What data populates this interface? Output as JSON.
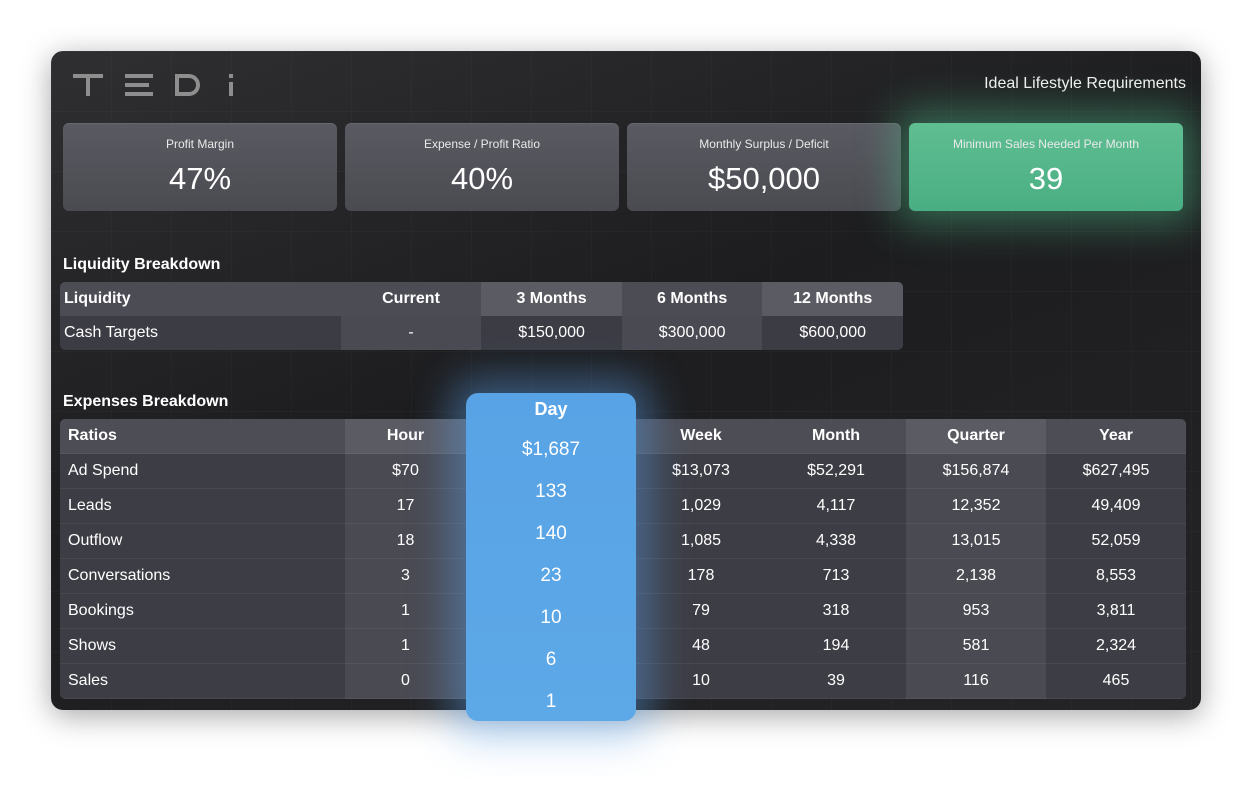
{
  "brand": "TEDi",
  "page_title": "Ideal Lifestyle Requirements",
  "kpis": [
    {
      "label": "Profit Margin",
      "value": "47%"
    },
    {
      "label": "Expense / Profit Ratio",
      "value": "40%"
    },
    {
      "label": "Monthly Surplus / Deficit",
      "value": "$50,000"
    },
    {
      "label": "Minimum Sales Needed Per Month",
      "value": "39"
    }
  ],
  "colors": {
    "highlight_green": "#4fb587",
    "highlight_blue": "#5aa5e6",
    "panel_bg": "#232325"
  },
  "liquidity": {
    "title": "Liquidity Breakdown",
    "headers": [
      "Liquidity",
      "Current",
      "3 Months",
      "6 Months",
      "12 Months"
    ],
    "row": [
      "Cash Targets",
      "-",
      "$150,000",
      "$300,000",
      "$600,000"
    ]
  },
  "expenses": {
    "title": "Expenses Breakdown",
    "headers": [
      "Ratios",
      "Hour",
      "Day",
      "Week",
      "Month",
      "Quarter",
      "Year"
    ],
    "rows": [
      [
        "Ad Spend",
        "$70",
        "$1,687",
        "$13,073",
        "$52,291",
        "$156,874",
        "$627,495"
      ],
      [
        "Leads",
        "17",
        "133",
        "1,029",
        "4,117",
        "12,352",
        "49,409"
      ],
      [
        "Outflow",
        "18",
        "140",
        "1,085",
        "4,338",
        "13,015",
        "52,059"
      ],
      [
        "Conversations",
        "3",
        "23",
        "178",
        "713",
        "2,138",
        "8,553"
      ],
      [
        "Bookings",
        "1",
        "10",
        "79",
        "318",
        "953",
        "3,811"
      ],
      [
        "Shows",
        "1",
        "6",
        "48",
        "194",
        "581",
        "2,324"
      ],
      [
        "Sales",
        "0",
        "1",
        "10",
        "39",
        "116",
        "465"
      ]
    ]
  }
}
